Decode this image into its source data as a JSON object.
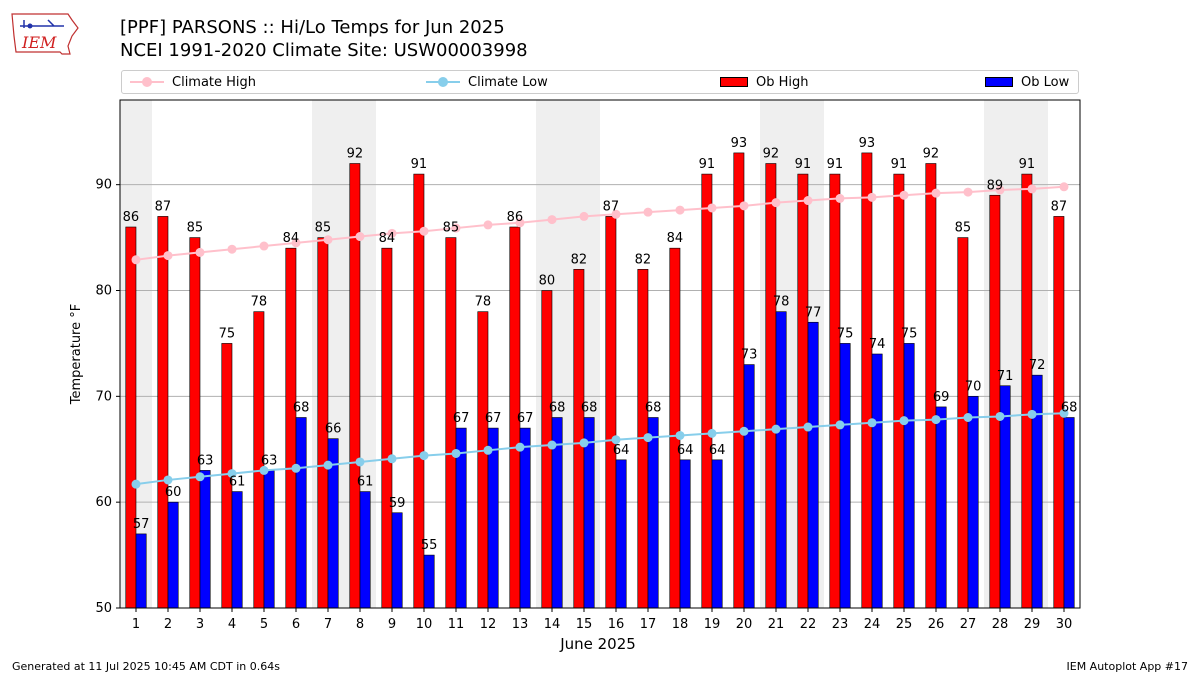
{
  "header": {
    "title_line1": "[PPF] PARSONS :: Hi/Lo Temps for Jun 2025",
    "title_line2": "NCEI 1991-2020 Climate Site: USW00003998"
  },
  "logo": {
    "text": "IEM"
  },
  "footer": {
    "left": "Generated at 11 Jul 2025 10:45 AM CDT in 0.64s",
    "right": "IEM Autoplot App #17"
  },
  "legend": {
    "climate_high": "Climate High",
    "climate_low": "Climate Low",
    "ob_high": "Ob High",
    "ob_low": "Ob Low"
  },
  "colors": {
    "ob_high": "#ff0000",
    "ob_low": "#0000ff",
    "climate_high": "#ffc0cb",
    "climate_low": "#87ceeb",
    "weekend_shade": "#efefef",
    "grid": "#b0b0b0"
  },
  "chart_data": {
    "type": "bar",
    "title": "[PPF] PARSONS :: Hi/Lo Temps for Jun 2025",
    "xlabel": "June 2025",
    "ylabel": "Temperature °F",
    "ylim": [
      50,
      98
    ],
    "yticks": [
      50,
      60,
      70,
      80,
      90
    ],
    "categories": [
      "1",
      "2",
      "3",
      "4",
      "5",
      "6",
      "7",
      "8",
      "9",
      "10",
      "11",
      "12",
      "13",
      "14",
      "15",
      "16",
      "17",
      "18",
      "19",
      "20",
      "21",
      "22",
      "23",
      "24",
      "25",
      "26",
      "27",
      "28",
      "29",
      "30"
    ],
    "shaded_days": [
      1,
      7,
      8,
      14,
      15,
      21,
      22,
      28,
      29
    ],
    "series": [
      {
        "name": "Ob High",
        "kind": "bar",
        "values": [
          86,
          87,
          85,
          75,
          78,
          84,
          85,
          92,
          84,
          91,
          85,
          78,
          86,
          80,
          82,
          87,
          82,
          84,
          91,
          93,
          92,
          91,
          91,
          93,
          91,
          92,
          85,
          89,
          91,
          87
        ]
      },
      {
        "name": "Ob Low",
        "kind": "bar",
        "values": [
          57,
          60,
          63,
          61,
          63,
          68,
          66,
          61,
          59,
          55,
          67,
          67,
          67,
          68,
          68,
          64,
          68,
          64,
          64,
          73,
          78,
          77,
          75,
          74,
          75,
          69,
          70,
          71,
          72,
          68
        ]
      },
      {
        "name": "Climate High",
        "kind": "line",
        "values": [
          82.9,
          83.3,
          83.6,
          83.9,
          84.2,
          84.5,
          84.8,
          85.1,
          85.4,
          85.6,
          85.9,
          86.2,
          86.4,
          86.7,
          87.0,
          87.2,
          87.4,
          87.6,
          87.8,
          88.0,
          88.3,
          88.5,
          88.7,
          88.8,
          89.0,
          89.2,
          89.3,
          89.5,
          89.6,
          89.8
        ]
      },
      {
        "name": "Climate Low",
        "kind": "line",
        "values": [
          61.7,
          62.1,
          62.4,
          62.7,
          63.0,
          63.2,
          63.5,
          63.8,
          64.1,
          64.4,
          64.6,
          64.9,
          65.2,
          65.4,
          65.6,
          65.9,
          66.1,
          66.3,
          66.5,
          66.7,
          66.9,
          67.1,
          67.3,
          67.5,
          67.7,
          67.8,
          68.0,
          68.1,
          68.3,
          68.4
        ]
      }
    ]
  }
}
